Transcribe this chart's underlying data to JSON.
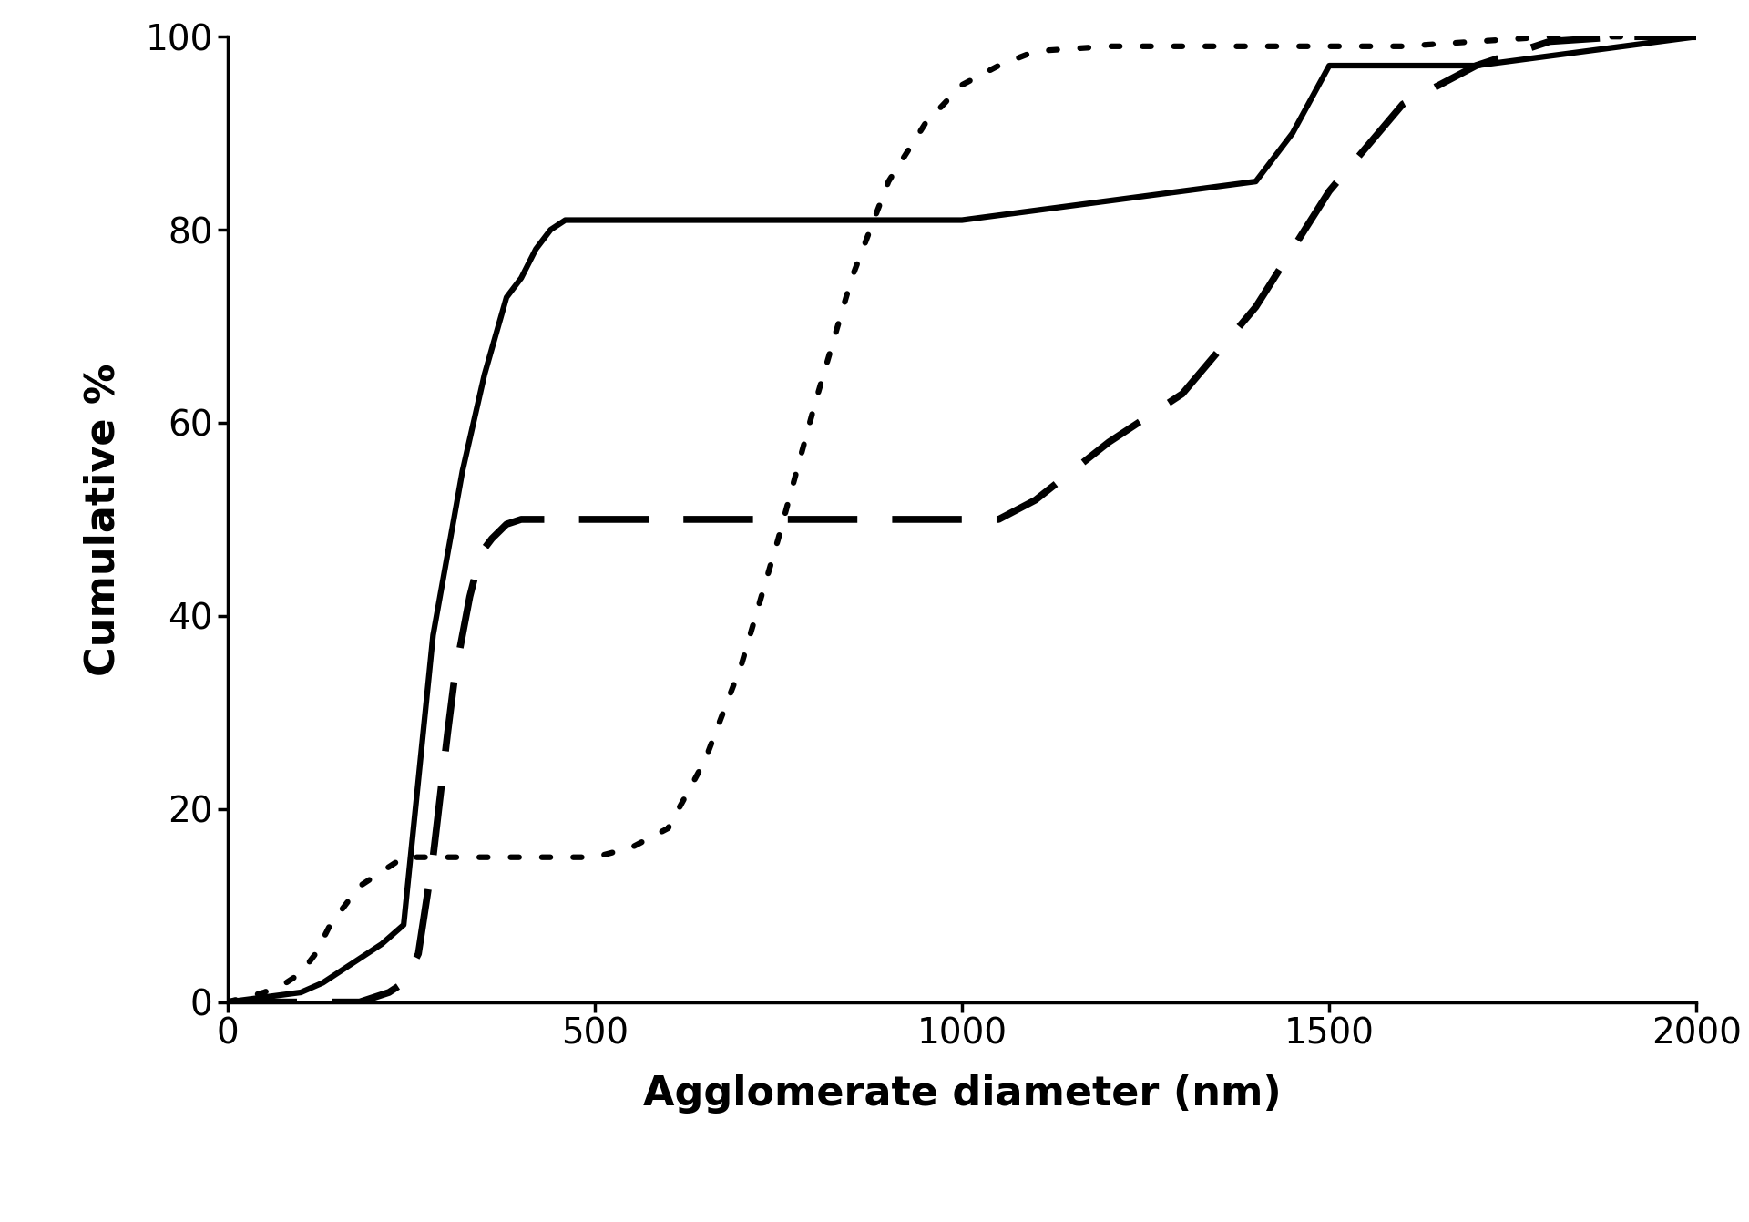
{
  "title": "",
  "xlabel": "Agglomerate diameter (nm)",
  "ylabel": "Cumulative %",
  "xlim": [
    0,
    2000
  ],
  "ylim": [
    0,
    100
  ],
  "xticks": [
    0,
    500,
    1000,
    1500,
    2000
  ],
  "yticks": [
    0,
    20,
    40,
    60,
    80,
    100
  ],
  "background_color": "#ffffff",
  "xlabel_fontsize": 32,
  "ylabel_fontsize": 32,
  "tick_fontsize": 28,
  "linewidth_solid": 4.5,
  "linewidth_dashed": 5.5,
  "linewidth_dotted": 4.5,
  "solid_x": [
    0,
    50,
    100,
    130,
    150,
    170,
    190,
    210,
    240,
    280,
    320,
    350,
    380,
    400,
    420,
    440,
    460,
    480,
    500,
    550,
    600,
    650,
    700,
    800,
    900,
    1000,
    1100,
    1200,
    1300,
    1400,
    1450,
    1500,
    1550,
    1600,
    1650,
    1700,
    1800,
    1900,
    2000
  ],
  "solid_y": [
    0,
    0.5,
    1,
    2,
    3,
    4,
    5,
    6,
    8,
    38,
    55,
    65,
    73,
    75,
    78,
    80,
    81,
    81,
    81,
    81,
    81,
    81,
    81,
    81,
    81,
    81,
    82,
    83,
    84,
    85,
    90,
    97,
    97,
    97,
    97,
    97,
    98,
    99,
    100
  ],
  "dashed_x": [
    0,
    50,
    100,
    150,
    180,
    200,
    220,
    240,
    260,
    280,
    300,
    310,
    320,
    330,
    340,
    350,
    360,
    380,
    400,
    420,
    440,
    460,
    480,
    500,
    600,
    700,
    800,
    900,
    1000,
    1050,
    1100,
    1200,
    1300,
    1400,
    1450,
    1500,
    1600,
    1700,
    1800,
    1900,
    2000
  ],
  "dashed_y": [
    0,
    0,
    0,
    0,
    0,
    0.5,
    1,
    2,
    5,
    15,
    28,
    34,
    38,
    42,
    45,
    47,
    48,
    49.5,
    50,
    50,
    50,
    50,
    50,
    50,
    50,
    50,
    50,
    50,
    50,
    50,
    52,
    58,
    63,
    72,
    78,
    84,
    93,
    97,
    99.5,
    100,
    100
  ],
  "dotted_x": [
    0,
    50,
    80,
    100,
    120,
    140,
    160,
    180,
    200,
    220,
    240,
    260,
    280,
    300,
    320,
    340,
    360,
    380,
    400,
    450,
    500,
    550,
    600,
    650,
    700,
    750,
    800,
    850,
    900,
    950,
    1000,
    1050,
    1100,
    1200,
    1300,
    1400,
    1500,
    1600,
    1700,
    1800,
    1900,
    2000
  ],
  "dotted_y": [
    0,
    1,
    2,
    3,
    5,
    8,
    10,
    12,
    13,
    14,
    15,
    15,
    15,
    15,
    15,
    15,
    15,
    15,
    15,
    15,
    15,
    16,
    18,
    25,
    35,
    48,
    62,
    75,
    85,
    91,
    95,
    97,
    98.5,
    99,
    99,
    99,
    99,
    99,
    99.5,
    100,
    100,
    100
  ]
}
